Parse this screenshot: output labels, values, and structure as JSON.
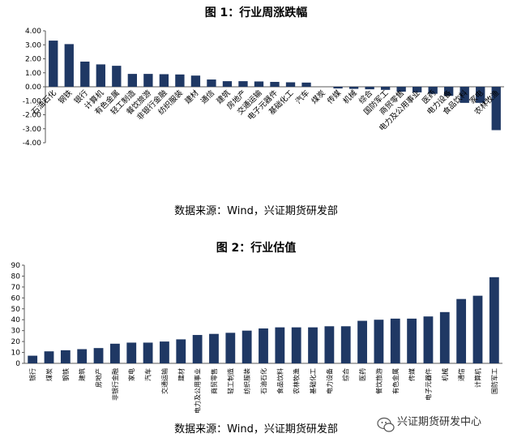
{
  "colors": {
    "bar": "#1f3864",
    "axis": "#595959",
    "grid": "#bfbfbf",
    "text": "#000000"
  },
  "watermark": {
    "text": "兴证期货研发中心",
    "icon": "wechat-icon"
  },
  "chart_data": [
    {
      "type": "bar",
      "title": "图 1：行业周涨跌幅",
      "source": "数据来源：Wind，兴证期货研发部",
      "categories": [
        "石油石化",
        "钢铁",
        "银行",
        "计算机",
        "有色金属",
        "轻工制造",
        "餐饮旅游",
        "非银行金融",
        "纺织服装",
        "建材",
        "通信",
        "建筑",
        "房地产",
        "交通运输",
        "电子元器件",
        "基础化工",
        "汽车",
        "煤炭",
        "传媒",
        "机械",
        "综合",
        "国防军工",
        "商贸零售",
        "电力及公用事业",
        "医药",
        "电力设备",
        "食品饮料",
        "家电",
        "农林牧渔"
      ],
      "values": [
        3.3,
        3.05,
        1.8,
        1.6,
        1.5,
        0.92,
        0.92,
        0.9,
        0.88,
        0.8,
        0.52,
        0.4,
        0.4,
        0.38,
        0.35,
        0.32,
        0.3,
        0.0,
        -0.12,
        -0.15,
        -0.18,
        -0.22,
        -0.35,
        -0.4,
        -0.5,
        -0.65,
        -1.15,
        -1.15,
        -3.1
      ],
      "ylim": [
        -4,
        4
      ],
      "yticks": [
        "4.00",
        "3.00",
        "2.00",
        "1.00",
        "0.00",
        "-1.00",
        "-2.00",
        "-3.00",
        "-4.00"
      ],
      "grid": false
    },
    {
      "type": "bar",
      "title": "图 2：行业估值",
      "source": "数据来源：Wind，兴证期货研发部",
      "categories": [
        "银行",
        "煤炭",
        "钢铁",
        "建筑",
        "房地产",
        "非银行金融",
        "家电",
        "汽车",
        "交通运输",
        "建材",
        "电力及公用事业",
        "商贸零售",
        "轻工制造",
        "纺织服装",
        "石油石化",
        "食品饮料",
        "农林牧渔",
        "基础化工",
        "电力设备",
        "综合",
        "医药",
        "餐饮旅游",
        "有色金属",
        "传媒",
        "电子元器件",
        "机械",
        "通信",
        "计算机",
        "国防军工"
      ],
      "values": [
        7,
        11,
        12,
        13,
        14,
        18,
        19,
        19,
        20,
        22,
        26,
        27,
        28,
        30,
        32,
        33,
        33,
        33,
        34,
        34,
        39,
        40,
        41,
        41,
        43,
        47,
        59,
        62,
        79
      ],
      "ylim": [
        0,
        90
      ],
      "yticks": [
        "90",
        "80",
        "70",
        "60",
        "50",
        "40",
        "30",
        "20",
        "10",
        "0"
      ],
      "grid": false
    }
  ]
}
